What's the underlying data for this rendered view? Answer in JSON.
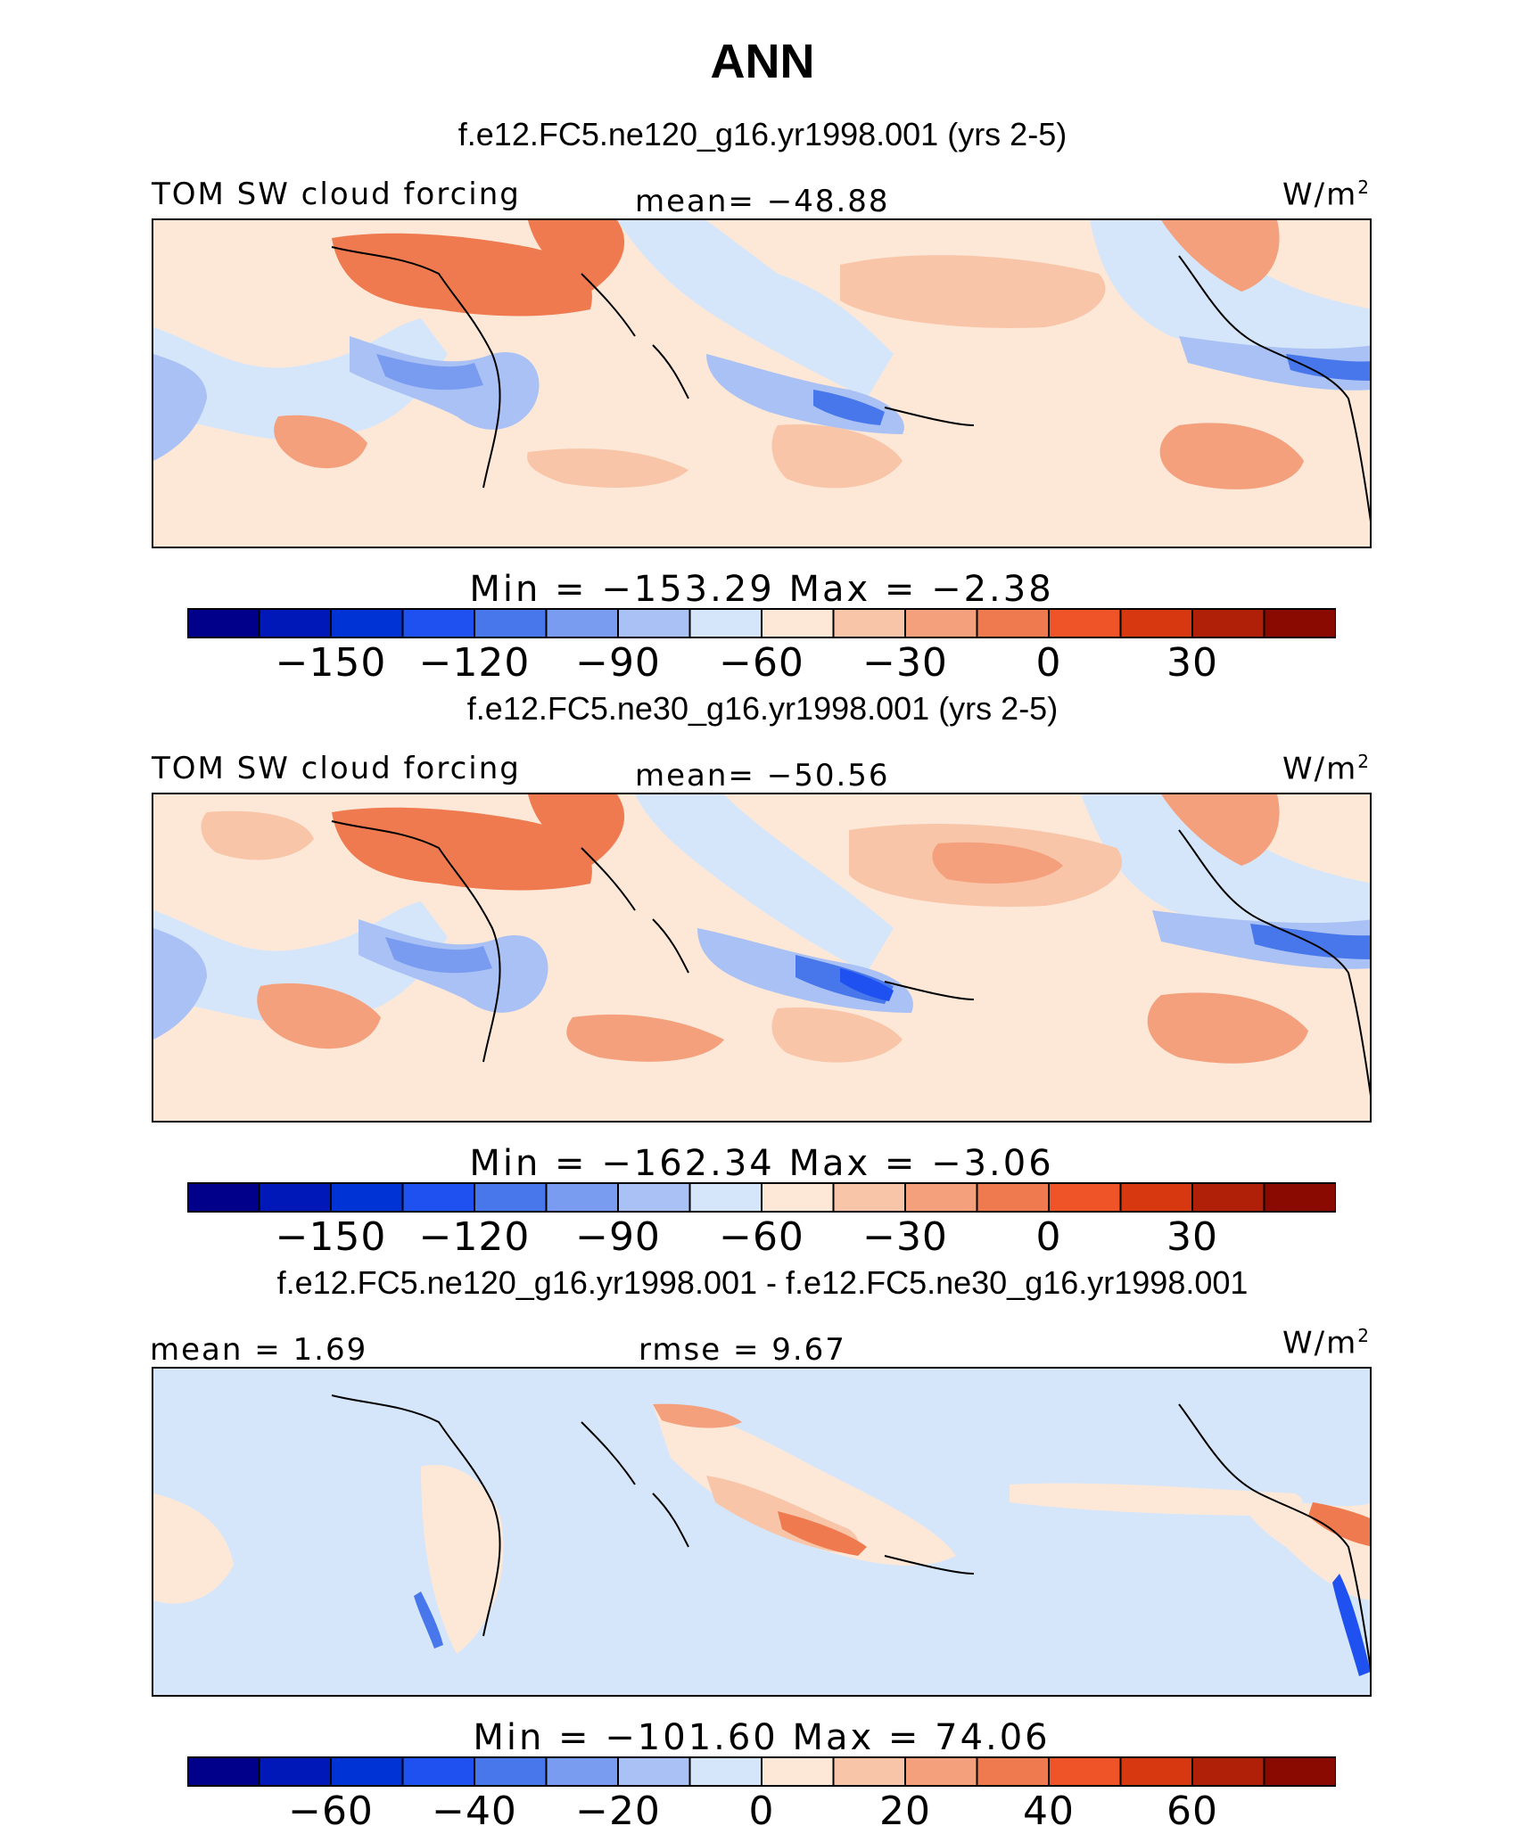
{
  "chart_data": [
    {
      "type": "heatmap",
      "title": "ANN",
      "subtitle": "f.e12.FC5.ne120_g16.yr1998.001 (yrs 2-5)",
      "variable_label": "TOM SW cloud forcing",
      "mean_label": "mean= −48.88",
      "units": "W/m",
      "units_sup": "2",
      "min_max_label": "Min  =  −153.29  Max  =   −2.38",
      "min": -153.29,
      "max": -2.38,
      "mean": -48.88,
      "colorbar_ticks": [
        "−150",
        "−120",
        "−90",
        "−60",
        "−30",
        "0",
        "30"
      ],
      "colorbar_levels": [
        -165,
        -150,
        -135,
        -120,
        -105,
        -90,
        -75,
        -60,
        -45,
        -30,
        -15,
        0,
        15,
        30,
        45,
        60
      ],
      "colorbar_colors": [
        "#00008a",
        "#0018b8",
        "#0033d6",
        "#1f50f0",
        "#4877ec",
        "#7a9cf0",
        "#a9c1f4",
        "#d6e6fa",
        "#fde8d8",
        "#f9c5a8",
        "#f4a07c",
        "#f07a50",
        "#ee5428",
        "#d83810",
        "#b02008",
        "#8a0a02"
      ]
    },
    {
      "type": "heatmap",
      "subtitle": "f.e12.FC5.ne30_g16.yr1998.001 (yrs 2-5)",
      "variable_label": "TOM SW cloud forcing",
      "mean_label": "mean= −50.56",
      "units": "W/m",
      "units_sup": "2",
      "min_max_label": "Min  =  −162.34  Max  =   −3.06",
      "min": -162.34,
      "max": -3.06,
      "mean": -50.56,
      "colorbar_ticks": [
        "−150",
        "−120",
        "−90",
        "−60",
        "−30",
        "0",
        "30"
      ]
    },
    {
      "type": "heatmap",
      "subtitle": "f.e12.FC5.ne120_g16.yr1998.001 - f.e12.FC5.ne30_g16.yr1998.001",
      "mean_label": "mean  =    1.69",
      "rmse_label": "rmse  =    9.67",
      "units": "W/m",
      "units_sup": "2",
      "min_max_label": "Min  =  −101.60  Max  =   74.06",
      "min": -101.6,
      "max": 74.06,
      "mean": 1.69,
      "rmse": 9.67,
      "colorbar_ticks": [
        "−60",
        "−40",
        "−20",
        "0",
        "20",
        "40",
        "60"
      ],
      "colorbar_levels": [
        -80,
        -70,
        -60,
        -50,
        -40,
        -30,
        -20,
        -10,
        0,
        10,
        20,
        30,
        40,
        50,
        60,
        70,
        80
      ]
    }
  ]
}
